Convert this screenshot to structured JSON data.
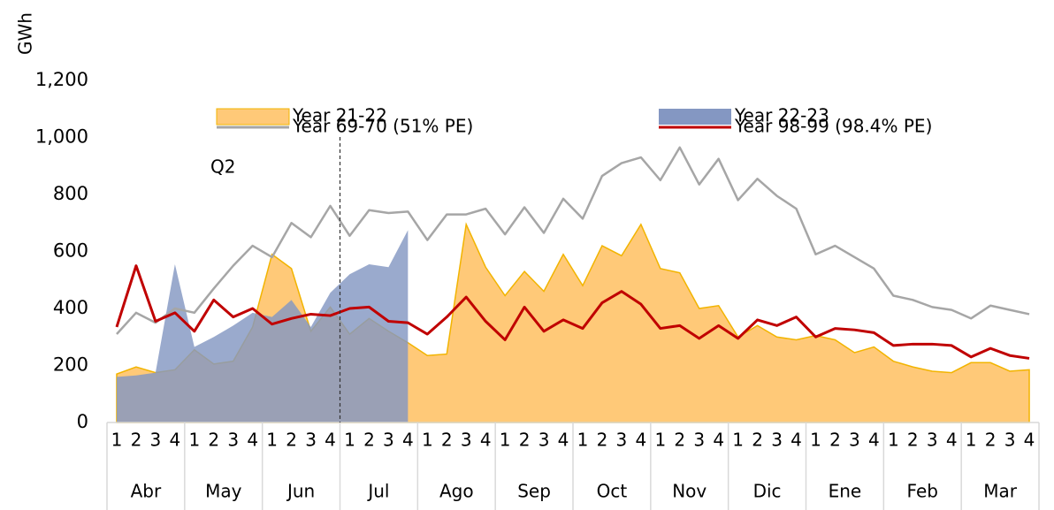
{
  "chart_data": {
    "type": "area_line",
    "y_label": "GWh",
    "categories": [
      "1",
      "2",
      "3",
      "4",
      "1",
      "2",
      "3",
      "4",
      "1",
      "2",
      "3",
      "4",
      "1",
      "2",
      "3",
      "4",
      "1",
      "2",
      "3",
      "4",
      "1",
      "2",
      "3",
      "4",
      "1",
      "2",
      "3",
      "4",
      "1",
      "2",
      "3",
      "4",
      "1",
      "2",
      "3",
      "4",
      "1",
      "2",
      "3",
      "4",
      "1",
      "2",
      "3",
      "4",
      "1",
      "2",
      "3",
      "4"
    ],
    "months": [
      "Abr",
      "May",
      "Jun",
      "Jul",
      "Ago",
      "Sep",
      "Oct",
      "Nov",
      "Dic",
      "Ene",
      "Feb",
      "Mar"
    ],
    "ylim": [
      0,
      1200
    ],
    "yticks": [
      0,
      200,
      400,
      600,
      800,
      {
        "value": 1000,
        "label": "1,000"
      },
      {
        "value": 1200,
        "label": "1,200"
      }
    ],
    "annotations": [
      "Q2"
    ],
    "series": [
      {
        "name": "Year 21-22",
        "kind": "area",
        "color": "#ffc978",
        "values": [
          170,
          195,
          175,
          185,
          255,
          205,
          215,
          335,
          590,
          540,
          320,
          405,
          310,
          365,
          320,
          280,
          235,
          240,
          695,
          545,
          445,
          530,
          460,
          590,
          480,
          620,
          585,
          695,
          540,
          525,
          400,
          410,
          300,
          340,
          300,
          290,
          305,
          290,
          245,
          265,
          215,
          195,
          180,
          175,
          210,
          210,
          180,
          185
        ]
      },
      {
        "name": "Year 22-23",
        "kind": "area",
        "color": "#8497c2",
        "values": [
          160,
          165,
          175,
          555,
          265,
          300,
          340,
          385,
          370,
          430,
          335,
          455,
          520,
          555,
          545,
          675,
          null,
          null,
          null,
          null,
          null,
          null,
          null,
          null,
          null,
          null,
          null,
          null,
          null,
          null,
          null,
          null,
          null,
          null,
          null,
          null,
          null,
          null,
          null,
          null,
          null,
          null,
          null,
          null,
          null,
          null,
          null,
          null
        ]
      },
      {
        "name": "Year 69-70 (51% PE)",
        "kind": "line",
        "color": "#a6a6a6",
        "values": [
          310,
          385,
          350,
          400,
          385,
          470,
          550,
          620,
          580,
          700,
          650,
          760,
          655,
          745,
          735,
          740,
          640,
          730,
          730,
          750,
          660,
          755,
          665,
          785,
          715,
          865,
          910,
          930,
          850,
          965,
          835,
          925,
          780,
          855,
          795,
          750,
          590,
          620,
          580,
          540,
          445,
          430,
          405,
          395,
          365,
          410,
          395,
          380
        ]
      },
      {
        "name": "Year 98-99 (98.4% PE)",
        "kind": "line",
        "color": "#c00000",
        "values": [
          335,
          550,
          355,
          385,
          320,
          430,
          370,
          400,
          345,
          365,
          380,
          375,
          400,
          405,
          355,
          350,
          310,
          370,
          440,
          355,
          290,
          405,
          320,
          360,
          330,
          420,
          460,
          415,
          330,
          340,
          295,
          340,
          295,
          360,
          340,
          370,
          300,
          330,
          325,
          315,
          270,
          275,
          275,
          270,
          230,
          260,
          235,
          225
        ]
      }
    ]
  }
}
